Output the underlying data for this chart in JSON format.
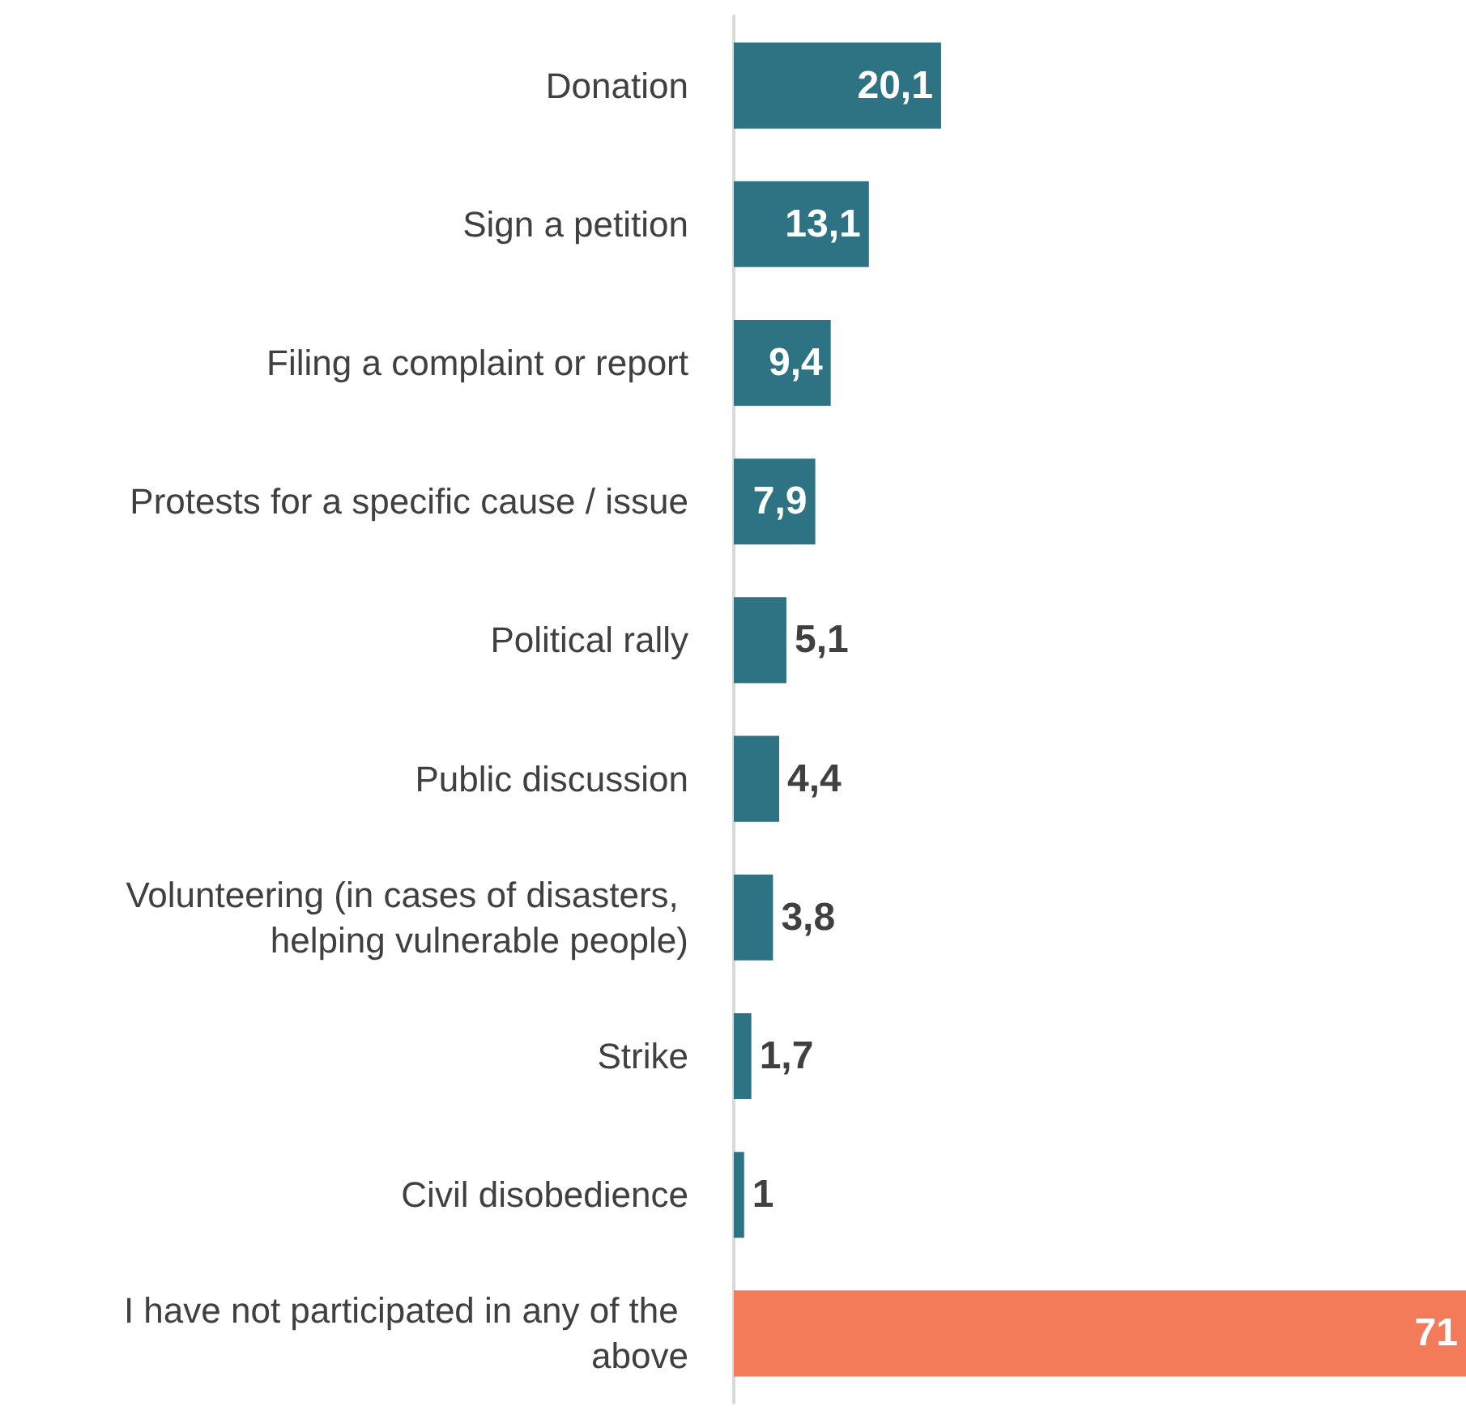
{
  "chart_data": {
    "type": "bar",
    "orientation": "horizontal",
    "categories": [
      "Donation",
      "Sign a petition",
      "Filing a complaint or report",
      "Protests for a specific cause / issue",
      "Political rally",
      "Public discussion",
      "Volunteering (in cases of disasters, helping vulnerable people)",
      "Strike",
      "Civil disobedience",
      "I have not participated in any of the above"
    ],
    "values": [
      20.1,
      13.1,
      9.4,
      7.9,
      5.1,
      4.4,
      3.8,
      1.7,
      1,
      71
    ],
    "value_labels": [
      "20,1",
      "13,1",
      "9,4",
      "7,9",
      "5,1",
      "4,4",
      "3,8",
      "1,7",
      "1",
      "71"
    ],
    "colors": [
      "#2e7384",
      "#2e7384",
      "#2e7384",
      "#2e7384",
      "#2e7384",
      "#2e7384",
      "#2e7384",
      "#2e7384",
      "#2e7384",
      "#f47b5a"
    ]
  }
}
